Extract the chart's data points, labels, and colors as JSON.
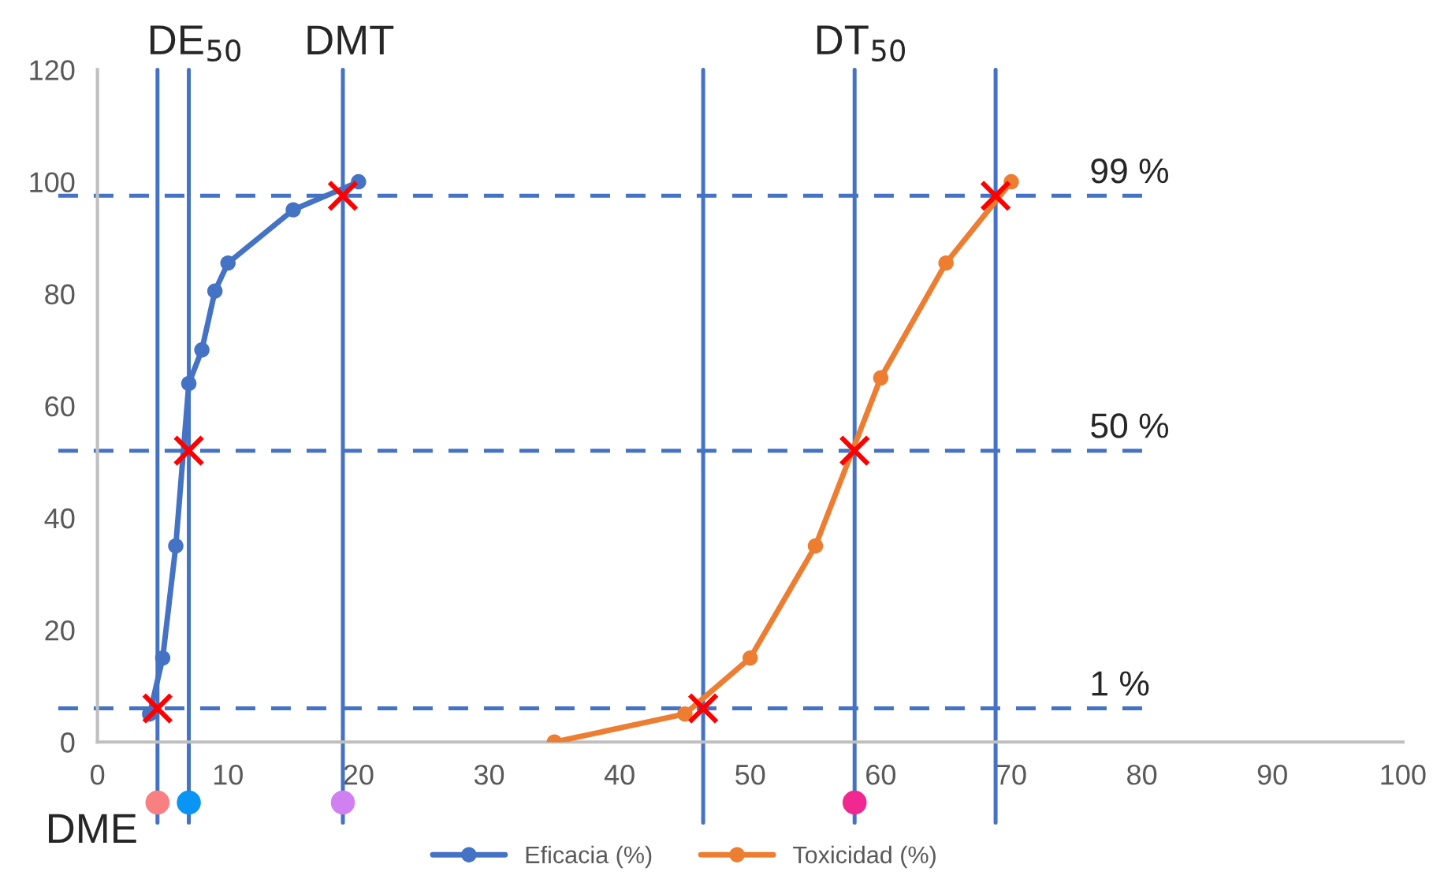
{
  "chart_data": {
    "type": "line",
    "marker": "circle",
    "legend": "bottom",
    "grid": false,
    "xlim": [
      0,
      100
    ],
    "xticks": [
      0,
      10,
      20,
      30,
      40,
      50,
      60,
      70,
      80,
      90,
      100
    ],
    "ylim": [
      0,
      120
    ],
    "yticks": [
      0,
      20,
      40,
      60,
      80,
      100,
      120
    ],
    "series": [
      {
        "name": "Eficacia (%)",
        "color": "#4472c4",
        "x": [
          4,
          5,
          6,
          7,
          8,
          9,
          10,
          15,
          20
        ],
        "values": [
          5,
          15,
          35,
          64,
          70,
          80.5,
          85.5,
          95,
          100
        ]
      },
      {
        "name": "Toxicidad (%)",
        "color": "#ed7d31",
        "x": [
          35,
          45,
          50,
          55,
          60,
          65,
          70
        ],
        "values": [
          0,
          5,
          15,
          35,
          65,
          85.5,
          100
        ]
      },
      {
        "type": "scatter",
        "marker": "cross",
        "color": "#ff0000",
        "x": [
          4.6,
          7,
          18.8,
          46.4,
          58,
          68.8
        ],
        "values": [
          6,
          52,
          97.5,
          6,
          52,
          97.5
        ]
      }
    ],
    "ref_lines": [
      {
        "axis": "x",
        "value": 4.6,
        "label": "DME",
        "color": "#4472c4"
      },
      {
        "axis": "x",
        "value": 7,
        "label": "DE$_{50}$",
        "color": "#4472c4"
      },
      {
        "axis": "x",
        "value": 18.8,
        "label": "DMT",
        "color": "#4472c4"
      },
      {
        "axis": "x",
        "value": 46.4,
        "color": "#4472c4"
      },
      {
        "axis": "x",
        "value": 58,
        "label": "DT$_{50}$",
        "color": "#4472c4"
      },
      {
        "axis": "x",
        "value": 68.8,
        "color": "#4472c4"
      },
      {
        "axis": "y",
        "value": 97.5,
        "color": "#4472c4",
        "line_style": "dashed"
      },
      {
        "axis": "y",
        "value": 52,
        "color": "#4472c4",
        "line_style": "dashed"
      },
      {
        "axis": "y",
        "value": 6,
        "color": "#4472c4",
        "line_style": "dashed"
      }
    ],
    "annotations": [
      "99 %",
      "50 %",
      "1 %"
    ]
  }
}
